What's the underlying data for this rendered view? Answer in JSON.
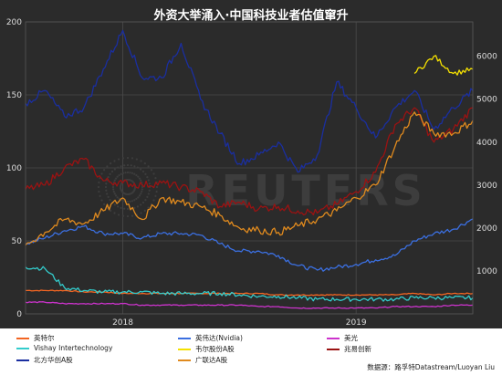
{
  "chart_data": {
    "type": "line",
    "title": "外资大举涌入·中国科技业者估值窜升",
    "x_ticks": [
      "2018",
      "2019"
    ],
    "x_range": [
      "2017-08",
      "2019-07"
    ],
    "y_left_ticks": [
      0,
      50,
      100,
      150,
      200
    ],
    "y_left_range": [
      0,
      200
    ],
    "y_right_ticks": [
      1000,
      2000,
      3000,
      4000,
      5000,
      6000
    ],
    "y_right_range": [
      0,
      6800
    ],
    "grid": true,
    "legend_position": "bottom",
    "watermark": "REUTERS",
    "source": "数据源：路孚特Datastream/Luoyan Liu",
    "x": [
      "2017-08",
      "2017-09",
      "2017-10",
      "2017-11",
      "2017-12",
      "2018-01",
      "2018-02",
      "2018-03",
      "2018-04",
      "2018-05",
      "2018-06",
      "2018-07",
      "2018-08",
      "2018-09",
      "2018-10",
      "2018-11",
      "2018-12",
      "2019-01",
      "2019-02",
      "2019-03",
      "2019-04",
      "2019-05",
      "2019-06",
      "2019-07"
    ],
    "series": [
      {
        "name": "英特尔",
        "axis": "left",
        "color": "#f26522",
        "values": [
          16,
          16,
          16,
          15,
          15,
          14,
          14,
          14,
          14,
          14,
          14,
          14,
          14,
          13,
          13,
          13,
          13,
          13,
          13,
          13,
          14,
          13,
          14,
          14
        ]
      },
      {
        "name": "英伟达(Nvidia)",
        "axis": "left",
        "color": "#3b6fe0",
        "values": [
          48,
          52,
          57,
          60,
          55,
          55,
          52,
          55,
          55,
          54,
          48,
          43,
          43,
          40,
          33,
          30,
          32,
          34,
          37,
          40,
          50,
          55,
          58,
          65
        ]
      },
      {
        "name": "美光",
        "axis": "left",
        "color": "#cc33cc",
        "values": [
          8,
          8,
          7,
          7,
          7,
          7,
          6,
          6,
          6,
          6,
          6,
          6,
          5,
          5,
          4,
          4,
          4,
          4,
          4,
          5,
          5,
          5,
          6,
          6
        ]
      },
      {
        "name": "Vishay Intertechnology",
        "axis": "left",
        "color": "#33cccc",
        "values": [
          32,
          31,
          18,
          16,
          15,
          15,
          15,
          14,
          14,
          14,
          14,
          13,
          12,
          12,
          11,
          10,
          10,
          10,
          10,
          10,
          11,
          11,
          11,
          11
        ]
      },
      {
        "name": "韦尔股份A股",
        "axis": "right",
        "color": "#f5e100",
        "values": [
          null,
          null,
          null,
          null,
          null,
          null,
          null,
          null,
          null,
          null,
          null,
          null,
          null,
          null,
          null,
          null,
          null,
          null,
          null,
          null,
          5600,
          6000,
          5600,
          5700
        ]
      },
      {
        "name": "兆易创新",
        "axis": "right",
        "color": "#9b1212",
        "values": [
          2900,
          3000,
          3400,
          3600,
          3100,
          3050,
          3000,
          3050,
          2950,
          2850,
          2500,
          2600,
          2450,
          2500,
          2400,
          2350,
          2550,
          2850,
          3300,
          4400,
          4800,
          4000,
          4300,
          4800
        ]
      },
      {
        "name": "北方华创A股",
        "axis": "right",
        "color": "#1a2ea0",
        "values": [
          4900,
          5200,
          4600,
          4800,
          5700,
          6600,
          5500,
          5500,
          6300,
          5000,
          4200,
          3500,
          3700,
          4000,
          3300,
          3700,
          5400,
          4800,
          4100,
          4800,
          5200,
          4300,
          4800,
          5200
        ]
      },
      {
        "name": "广联达A股",
        "axis": "right",
        "color": "#e08a1e",
        "values": [
          1600,
          1900,
          2200,
          2100,
          2400,
          2700,
          2200,
          2700,
          2600,
          2500,
          2300,
          2000,
          1950,
          1900,
          2050,
          2200,
          2400,
          2700,
          3000,
          3900,
          4700,
          4200,
          4200,
          4500
        ]
      }
    ]
  },
  "legend": {
    "items": [
      {
        "label": "英特尔",
        "color": "#f26522"
      },
      {
        "label": "英伟达(Nvidia)",
        "color": "#3b6fe0"
      },
      {
        "label": "美光",
        "color": "#cc33cc"
      },
      {
        "label": "Vishay Intertechnology",
        "color": "#33cccc"
      },
      {
        "label": "韦尔股份A股",
        "color": "#f5e100"
      },
      {
        "label": "兆易创新",
        "color": "#9b1212"
      },
      {
        "label": "北方华创A股",
        "color": "#1a2ea0"
      },
      {
        "label": "广联达A股",
        "color": "#e08a1e"
      }
    ]
  }
}
